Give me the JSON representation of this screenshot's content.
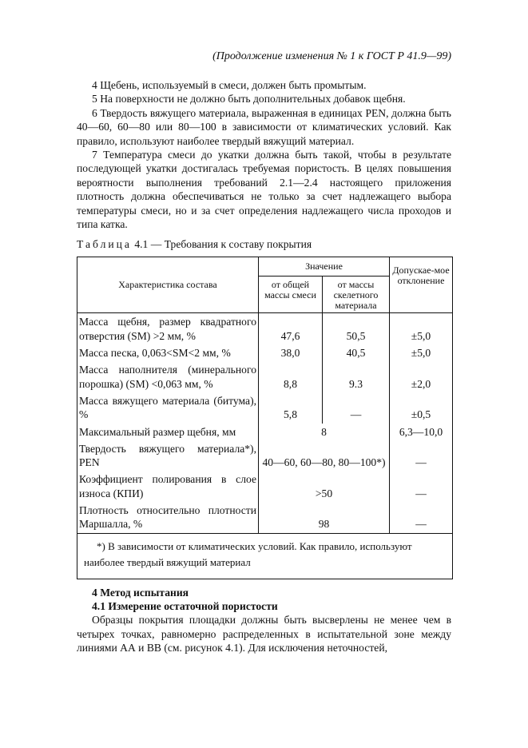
{
  "header": "(Продолжение изменения № 1 к  ГОСТ Р 41.9—99)",
  "paragraphs": [
    "4 Щебень, используемый в смеси, должен быть промытым.",
    "5 На поверхности не должно быть дополнительных добавок щебня.",
    "6 Твердость вяжущего материала, выраженная в единицах PEN, должна быть 40—60, 60—80 или 80—100 в зависимости от климатических условий. Как правило, используют наиболее твердый вяжущий материал.",
    "7 Температура смеси до укатки должна быть такой, чтобы в результате последующей укатки достигалась требуемая пористость. В целях повышения вероятности выполнения требований 2.1—2.4 настоящего приложения плотность должна обеспечиваться не только за счет надлежащего выбора температуры смеси, но и за счет определения надлежащего числа проходов и типа катка."
  ],
  "table": {
    "caption_word": "Таблица",
    "caption_rest": "4.1 — Требования к составу покрытия",
    "headers": {
      "characteristic": "Характеристика состава",
      "value": "Значение",
      "total_mass": "от общей массы смеси",
      "skeleton_mass": "от массы скелетного материала",
      "deviation": "Допускае-мое отклонение"
    },
    "rows": [
      {
        "label": "Масса щебня, размер квадратного отверстия (SM) >2 мм, %",
        "total": "47,6",
        "skeleton": "50,5",
        "deviation": "±5,0"
      },
      {
        "label": "Масса песка, 0,063<SM<2 мм, %",
        "total": "38,0",
        "skeleton": "40,5",
        "deviation": "±5,0"
      },
      {
        "label": "Масса наполнителя (минерального порошка) (SM) <0,063 мм, %",
        "total": "8,8",
        "skeleton": "9.3",
        "deviation": "±2,0"
      },
      {
        "label": "Масса вяжущего материала (битума), %",
        "total": "5,8",
        "skeleton": "—",
        "deviation": "±0,5"
      },
      {
        "label": "Максимальный размер щебня, мм",
        "merged": "8",
        "deviation": "6,3—10,0"
      },
      {
        "label": "Твердость вяжущего материала*), PEN",
        "merged": "40—60, 60—80, 80—100*)",
        "deviation": "—"
      },
      {
        "label": "Коэффициент полирования в слое износа (КПИ)",
        "merged": ">50",
        "deviation": "—"
      },
      {
        "label": "Плотность относительно плотности Маршалла, %",
        "merged": "98",
        "deviation": "—"
      }
    ],
    "footnote": "*) В зависимости от климатических условий. Как правило, используют наиболее твердый вяжущий материал"
  },
  "section": {
    "heading": "4 Метод испытания",
    "subheading": "4.1 Измерение остаточной пористости",
    "text": "Образцы покрытия площадки должны быть высверлены не менее чем в четырех точках, равномерно распределенных в испытательной зоне между линиями АА и ВВ (см. рисунок 4.1). Для исключения неточностей,"
  }
}
